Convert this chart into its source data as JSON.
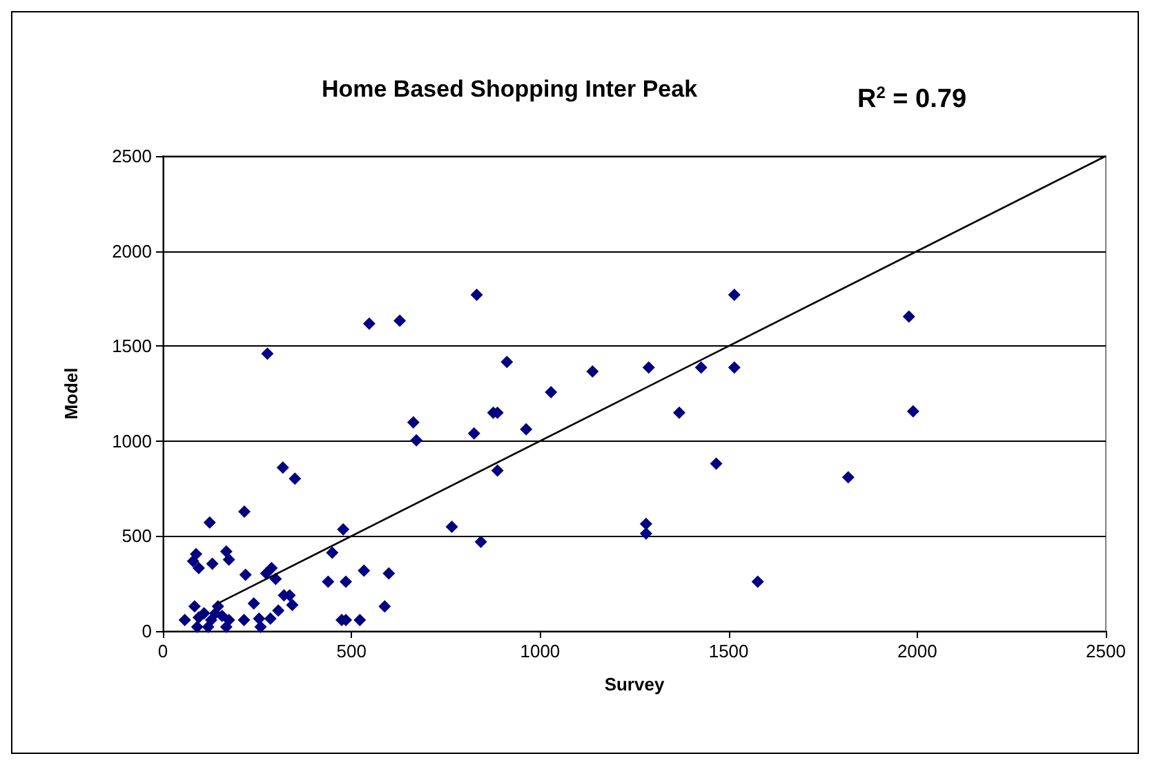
{
  "chart_data": {
    "type": "scatter",
    "title": "Home Based Shopping Inter Peak",
    "xlabel": "Survey",
    "ylabel": "Model",
    "annotations": [
      "R$^{2}$ = 0.79"
    ],
    "xlim": [
      0,
      2500
    ],
    "ylim": [
      0,
      2500
    ],
    "xticks": [
      0,
      500,
      1000,
      1500,
      2000,
      2500
    ],
    "yticks": [
      0,
      500,
      1000,
      1500,
      2000,
      2500
    ],
    "grid": "y",
    "marker": "diamond",
    "series": [
      {
        "color": "#000080",
        "x": [
          277,
          547,
          628,
          832,
          1515,
          1978,
          1989,
          912,
          1139,
          1288,
          1427,
          1515,
          1029,
          1369,
          963,
          887,
          887,
          1467,
          1281,
          1281,
          1577,
          1817,
          664,
          672,
          825,
          876,
          318,
          350,
          124,
          216,
          478,
          766,
          843,
          88,
          80,
          95,
          131,
          168,
          175,
          219,
          274,
          288,
          299,
          449,
          438,
          485,
          533,
          599,
          588,
          321,
          336,
          343,
          241,
          474,
          485,
          522,
          215,
          259,
          255,
          285,
          306,
          58,
          84,
          91,
          109,
          128,
          146,
          157,
          175,
          168,
          95,
          120,
          139
        ],
        "values": [
          1460,
          1618,
          1633,
          1770,
          1770,
          1655,
          1156,
          1416,
          1366,
          1387,
          1387,
          1387,
          1257,
          1149,
          1062,
          1149,
          845,
          881,
          564,
          513,
          260,
          809,
          1098,
          1004,
          1040,
          1149,
          860,
          802,
          571,
          629,
          535,
          549,
          470,
          405,
          368,
          332,
          354,
          419,
          376,
          296,
          303,
          332,
          274,
          412,
          260,
          260,
          318,
          303,
          130,
          188,
          188,
          137,
          145,
          58,
          58,
          58,
          58,
          22,
          65,
          65,
          108,
          58,
          130,
          22,
          94,
          58,
          130,
          80,
          58,
          22,
          72,
          22,
          94
        ]
      },
      {
        "type": "line",
        "color": "#000000",
        "marker": "none",
        "x": [
          146,
          2500
        ],
        "values": [
          146,
          2500
        ]
      }
    ]
  }
}
